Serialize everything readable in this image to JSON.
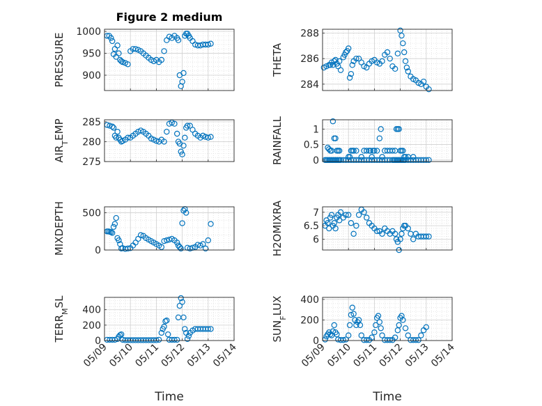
{
  "chart_data": [
    {
      "type": "scatter",
      "title": "Figure 2 medium",
      "ylabel": "PRESSURE",
      "ylim": [
        865,
        1005
      ],
      "yticks": [
        900,
        950,
        1000
      ],
      "xlim": [
        "05/09",
        "05/14"
      ],
      "xticks": [
        "05/09",
        "05/10",
        "05/11",
        "05/12",
        "05/13",
        "05/14"
      ],
      "show_xticklabels": false,
      "grid": true,
      "x": [
        0.1,
        0.18,
        0.25,
        0.3,
        0.35,
        0.4,
        0.45,
        0.5,
        0.55,
        0.6,
        0.65,
        0.7,
        0.8,
        0.9,
        1.0,
        1.1,
        1.2,
        1.3,
        1.4,
        1.5,
        1.6,
        1.7,
        1.8,
        1.9,
        2.0,
        2.1,
        2.2,
        2.3,
        2.4,
        2.5,
        2.6,
        2.7,
        2.8,
        2.85,
        2.9,
        2.95,
        3.0,
        3.05,
        3.1,
        3.15,
        3.2,
        3.25,
        3.3,
        3.4,
        3.5,
        3.6,
        3.7,
        3.8,
        3.9,
        4.0,
        4.1
      ],
      "values": [
        990,
        990,
        985,
        978,
        948,
        960,
        942,
        968,
        950,
        935,
        932,
        930,
        928,
        925,
        955,
        960,
        960,
        958,
        955,
        950,
        945,
        940,
        935,
        932,
        935,
        930,
        935,
        955,
        980,
        988,
        985,
        990,
        985,
        980,
        900,
        875,
        885,
        905,
        990,
        995,
        995,
        990,
        985,
        978,
        970,
        968,
        968,
        970,
        970,
        970,
        972
      ],
      "series_color": "#0072bd"
    },
    {
      "type": "scatter",
      "title": "",
      "ylabel": "THETA",
      "ylim": [
        283.5,
        288.3
      ],
      "yticks": [
        284,
        286,
        288
      ],
      "xlim": [
        "05/09",
        "05/14"
      ],
      "xticks": [
        "05/09",
        "05/10",
        "05/11",
        "05/12",
        "05/13",
        "05/14"
      ],
      "show_xticklabels": false,
      "grid": true,
      "x": [
        0.05,
        0.15,
        0.25,
        0.3,
        0.35,
        0.4,
        0.45,
        0.5,
        0.55,
        0.6,
        0.65,
        0.7,
        0.8,
        0.85,
        0.9,
        0.95,
        1.0,
        1.05,
        1.1,
        1.15,
        1.2,
        1.3,
        1.4,
        1.5,
        1.6,
        1.7,
        1.8,
        1.9,
        2.0,
        2.1,
        2.2,
        2.3,
        2.4,
        2.5,
        2.6,
        2.7,
        2.8,
        2.9,
        3.0,
        3.05,
        3.1,
        3.15,
        3.2,
        3.25,
        3.3,
        3.4,
        3.5,
        3.6,
        3.7,
        3.8,
        3.9,
        4.0,
        4.1
      ],
      "values": [
        285.3,
        285.4,
        285.5,
        285.5,
        285.7,
        285.5,
        285.8,
        285.9,
        285.6,
        285.4,
        285.8,
        285.1,
        286.1,
        286.3,
        286.5,
        286.6,
        286.8,
        284.5,
        284.8,
        285.5,
        285.8,
        286.0,
        286.0,
        285.7,
        285.4,
        285.3,
        285.6,
        285.8,
        285.9,
        285.7,
        285.6,
        285.8,
        286.3,
        286.5,
        286.0,
        285.4,
        285.2,
        286.4,
        288.2,
        287.8,
        287.2,
        286.5,
        285.8,
        285.3,
        285.0,
        284.6,
        284.4,
        284.3,
        284.1,
        284.0,
        284.2,
        283.8,
        283.6
      ],
      "series_color": "#0072bd"
    },
    {
      "type": "scatter",
      "title": "",
      "ylabel": "AIR_TEMP",
      "ylim": [
        275,
        285.5
      ],
      "yticks": [
        275,
        280,
        285
      ],
      "xlim": [
        "05/09",
        "05/14"
      ],
      "xticks": [
        "05/09",
        "05/10",
        "05/11",
        "05/12",
        "05/13",
        "05/14"
      ],
      "show_xticklabels": false,
      "grid": true,
      "x": [
        0.1,
        0.2,
        0.3,
        0.35,
        0.4,
        0.45,
        0.5,
        0.55,
        0.6,
        0.65,
        0.7,
        0.8,
        0.9,
        1.0,
        1.1,
        1.2,
        1.3,
        1.4,
        1.5,
        1.6,
        1.7,
        1.8,
        1.9,
        2.0,
        2.1,
        2.2,
        2.3,
        2.4,
        2.5,
        2.6,
        2.7,
        2.8,
        2.85,
        2.9,
        2.95,
        3.0,
        3.05,
        3.1,
        3.15,
        3.2,
        3.3,
        3.4,
        3.5,
        3.6,
        3.7,
        3.8,
        3.9,
        4.0,
        4.1
      ],
      "values": [
        284.2,
        284.0,
        283.8,
        283.5,
        281.5,
        281.0,
        282.5,
        281.0,
        280.5,
        280.0,
        280.2,
        280.5,
        281.0,
        281.0,
        281.5,
        282.0,
        282.5,
        282.8,
        282.5,
        282.0,
        281.5,
        280.8,
        280.5,
        280.2,
        280.0,
        280.5,
        280.0,
        282.5,
        284.5,
        284.8,
        284.5,
        282.0,
        280.0,
        279.5,
        277.5,
        276.8,
        279.0,
        281.0,
        283.5,
        284.0,
        284.0,
        283.0,
        282.0,
        281.5,
        281.0,
        281.5,
        281.2,
        281.0,
        281.2
      ],
      "series_color": "#0072bd"
    },
    {
      "type": "scatter",
      "title": "",
      "ylabel": "RAINFALL",
      "ylim": [
        -0.05,
        1.3
      ],
      "yticks": [
        0,
        0.5,
        1
      ],
      "ytick_labels": [
        "0",
        "0.5",
        "1"
      ],
      "xlim": [
        "05/09",
        "05/14"
      ],
      "xticks": [
        "05/09",
        "05/10",
        "05/11",
        "05/12",
        "05/13",
        "05/14"
      ],
      "show_xticklabels": false,
      "grid": true,
      "x": [
        0.1,
        0.15,
        0.2,
        0.25,
        0.3,
        0.35,
        0.4,
        0.45,
        0.5,
        0.55,
        0.6,
        0.65,
        0.7,
        0.8,
        0.9,
        1.0,
        1.1,
        1.2,
        1.3,
        1.4,
        1.5,
        1.6,
        1.7,
        1.8,
        1.9,
        2.0,
        2.1,
        2.2,
        2.3,
        2.4,
        2.5,
        2.6,
        2.7,
        2.75,
        2.8,
        2.85,
        2.9,
        2.95,
        3.0,
        3.05,
        3.1,
        3.15,
        3.2,
        3.3,
        3.4,
        3.5,
        3.6,
        3.7,
        3.8,
        3.9,
        4.0,
        4.1,
        0.2,
        0.25,
        0.3,
        0.35,
        0.4,
        0.45,
        0.5,
        0.55,
        0.6,
        0.65,
        1.0,
        1.05,
        1.1,
        1.15,
        1.2,
        1.3,
        1.5,
        1.6,
        1.7,
        1.8,
        1.85,
        1.9,
        1.95,
        2.0,
        2.1,
        2.2,
        2.25,
        2.3,
        2.4,
        2.5,
        2.6,
        2.7,
        2.8,
        2.85,
        2.9,
        2.95,
        3.0,
        3.05,
        3.1,
        3.15,
        3.2,
        3.3,
        3.5
      ],
      "values": [
        0,
        0,
        0,
        0,
        0,
        0,
        0,
        0,
        0,
        0,
        0,
        0,
        0,
        0,
        0,
        0,
        0,
        0,
        0,
        0,
        0,
        0,
        0,
        0,
        0,
        0,
        0,
        0,
        0,
        0,
        0,
        0,
        0,
        0,
        0,
        0,
        0,
        0,
        0,
        0,
        0,
        0,
        0,
        0,
        0,
        0,
        0,
        0,
        0,
        0,
        0,
        0,
        0.4,
        0.35,
        0.3,
        0.3,
        1.25,
        0.7,
        0.7,
        0.3,
        0.3,
        0.3,
        0.1,
        0.1,
        0.3,
        0.3,
        0.3,
        0.3,
        0.1,
        0.3,
        0.3,
        0.3,
        0.3,
        0.1,
        0.3,
        0.3,
        0.3,
        0.7,
        1.0,
        0.1,
        0.3,
        0.3,
        0.3,
        0.3,
        0.3,
        1.0,
        1.0,
        1.0,
        0.3,
        0.3,
        0.3,
        0.1,
        0.1,
        0.1,
        0.1
      ],
      "series_color": "#0072bd"
    },
    {
      "type": "scatter",
      "title": "",
      "ylabel": "MIXDEPTH",
      "ylim": [
        0,
        580
      ],
      "yticks": [
        0,
        500
      ],
      "xlim": [
        "05/09",
        "05/14"
      ],
      "xticks": [
        "05/09",
        "05/10",
        "05/11",
        "05/12",
        "05/13",
        "05/14"
      ],
      "show_xticklabels": false,
      "grid": true,
      "x": [
        0.1,
        0.15,
        0.2,
        0.25,
        0.3,
        0.35,
        0.4,
        0.45,
        0.5,
        0.55,
        0.6,
        0.65,
        0.7,
        0.8,
        0.9,
        1.0,
        1.1,
        1.2,
        1.3,
        1.4,
        1.5,
        1.6,
        1.7,
        1.8,
        1.9,
        2.0,
        2.1,
        2.2,
        2.3,
        2.4,
        2.5,
        2.6,
        2.7,
        2.8,
        2.85,
        2.9,
        2.95,
        3.0,
        3.05,
        3.1,
        3.15,
        3.2,
        3.3,
        3.4,
        3.5,
        3.6,
        3.7,
        3.8,
        3.9,
        4.0,
        4.1
      ],
      "values": [
        250,
        250,
        245,
        240,
        230,
        310,
        350,
        430,
        160,
        130,
        80,
        20,
        25,
        15,
        20,
        25,
        60,
        100,
        150,
        200,
        190,
        160,
        140,
        120,
        100,
        80,
        60,
        40,
        120,
        130,
        140,
        150,
        130,
        100,
        60,
        40,
        20,
        360,
        530,
        550,
        500,
        30,
        20,
        30,
        40,
        70,
        60,
        80,
        20,
        130,
        350
      ],
      "series_color": "#0072bd"
    },
    {
      "type": "scatter",
      "title": "",
      "ylabel": "H2OMIXRA",
      "ylim": [
        5.6,
        7.2
      ],
      "yticks": [
        6,
        6.5,
        7
      ],
      "ytick_labels": [
        "6",
        "6.5",
        "7"
      ],
      "xlim": [
        "05/09",
        "05/14"
      ],
      "xticks": [
        "05/09",
        "05/10",
        "05/11",
        "05/12",
        "05/13",
        "05/14"
      ],
      "show_xticklabels": false,
      "grid": true,
      "x": [
        0.1,
        0.15,
        0.2,
        0.25,
        0.3,
        0.35,
        0.4,
        0.45,
        0.5,
        0.55,
        0.6,
        0.65,
        0.7,
        0.8,
        0.9,
        1.0,
        1.1,
        1.2,
        1.3,
        1.4,
        1.5,
        1.6,
        1.7,
        1.8,
        1.9,
        2.0,
        2.1,
        2.2,
        2.3,
        2.4,
        2.5,
        2.6,
        2.7,
        2.8,
        2.85,
        2.9,
        2.95,
        3.0,
        3.05,
        3.1,
        3.15,
        3.2,
        3.3,
        3.4,
        3.5,
        3.6,
        3.7,
        3.8,
        3.9,
        4.0,
        4.1
      ],
      "values": [
        6.5,
        6.7,
        6.6,
        6.4,
        6.8,
        6.9,
        6.5,
        6.6,
        6.4,
        6.8,
        6.9,
        6.7,
        7.0,
        6.8,
        6.9,
        6.9,
        6.6,
        6.2,
        6.5,
        6.9,
        7.1,
        7.0,
        6.8,
        6.6,
        6.5,
        6.4,
        6.3,
        6.3,
        6.2,
        6.4,
        6.3,
        6.2,
        6.3,
        6.2,
        6.0,
        5.9,
        5.6,
        6.0,
        6.2,
        6.4,
        6.5,
        6.5,
        6.4,
        6.2,
        6.0,
        6.2,
        6.1,
        6.1,
        6.1,
        6.1,
        6.1
      ],
      "series_color": "#0072bd"
    },
    {
      "type": "scatter",
      "title": "",
      "ylabel": "TERR_MSL",
      "ylim": [
        0,
        560
      ],
      "yticks": [
        0,
        200,
        400
      ],
      "xlim": [
        "05/09",
        "05/14"
      ],
      "xticks": [
        "05/09",
        "05/10",
        "05/11",
        "05/12",
        "05/13",
        "05/14"
      ],
      "show_xticklabels": true,
      "xlabel": "Time",
      "grid": true,
      "x": [
        0.1,
        0.2,
        0.3,
        0.4,
        0.5,
        0.55,
        0.6,
        0.65,
        0.7,
        0.8,
        0.9,
        1.0,
        1.1,
        1.2,
        1.3,
        1.4,
        1.5,
        1.6,
        1.7,
        1.8,
        1.9,
        2.0,
        2.1,
        2.2,
        2.25,
        2.3,
        2.35,
        2.4,
        2.45,
        2.5,
        2.6,
        2.7,
        2.8,
        2.85,
        2.9,
        2.95,
        3.0,
        3.05,
        3.1,
        3.15,
        3.2,
        3.25,
        3.3,
        3.4,
        3.5,
        3.6,
        3.7,
        3.8,
        3.9,
        4.0,
        4.1
      ],
      "values": [
        10,
        10,
        10,
        10,
        20,
        50,
        70,
        80,
        10,
        5,
        5,
        5,
        5,
        5,
        5,
        5,
        5,
        5,
        5,
        5,
        5,
        5,
        10,
        100,
        150,
        180,
        250,
        260,
        80,
        10,
        10,
        10,
        10,
        300,
        450,
        550,
        500,
        300,
        150,
        100,
        20,
        60,
        100,
        130,
        150,
        150,
        150,
        150,
        150,
        150,
        150
      ],
      "series_color": "#0072bd"
    },
    {
      "type": "scatter",
      "title": "",
      "ylabel": "SUN_FLUX",
      "ylim": [
        0,
        420
      ],
      "yticks": [
        0,
        200,
        400
      ],
      "xlim": [
        "05/09",
        "05/14"
      ],
      "xticks": [
        "05/09",
        "05/10",
        "05/11",
        "05/12",
        "05/13",
        "05/14"
      ],
      "show_xticklabels": true,
      "xlabel": "Time",
      "grid": true,
      "x": [
        0.1,
        0.15,
        0.2,
        0.25,
        0.3,
        0.35,
        0.4,
        0.45,
        0.5,
        0.55,
        0.6,
        0.7,
        0.8,
        0.9,
        1.0,
        1.05,
        1.1,
        1.15,
        1.2,
        1.25,
        1.3,
        1.35,
        1.4,
        1.45,
        1.5,
        1.6,
        1.7,
        1.8,
        1.9,
        2.0,
        2.05,
        2.1,
        2.15,
        2.2,
        2.25,
        2.3,
        2.4,
        2.5,
        2.6,
        2.7,
        2.8,
        2.9,
        2.95,
        3.0,
        3.05,
        3.1,
        3.2,
        3.3,
        3.4,
        3.5,
        3.6,
        3.7,
        3.8,
        3.9,
        4.0
      ],
      "values": [
        10,
        40,
        60,
        80,
        60,
        50,
        90,
        150,
        80,
        60,
        10,
        5,
        5,
        10,
        50,
        150,
        250,
        320,
        260,
        200,
        150,
        180,
        200,
        150,
        50,
        5,
        5,
        5,
        30,
        80,
        150,
        220,
        240,
        180,
        120,
        50,
        5,
        5,
        5,
        5,
        30,
        100,
        150,
        220,
        240,
        200,
        120,
        50,
        5,
        5,
        5,
        5,
        50,
        100,
        130
      ],
      "series_color": "#0072bd"
    }
  ]
}
